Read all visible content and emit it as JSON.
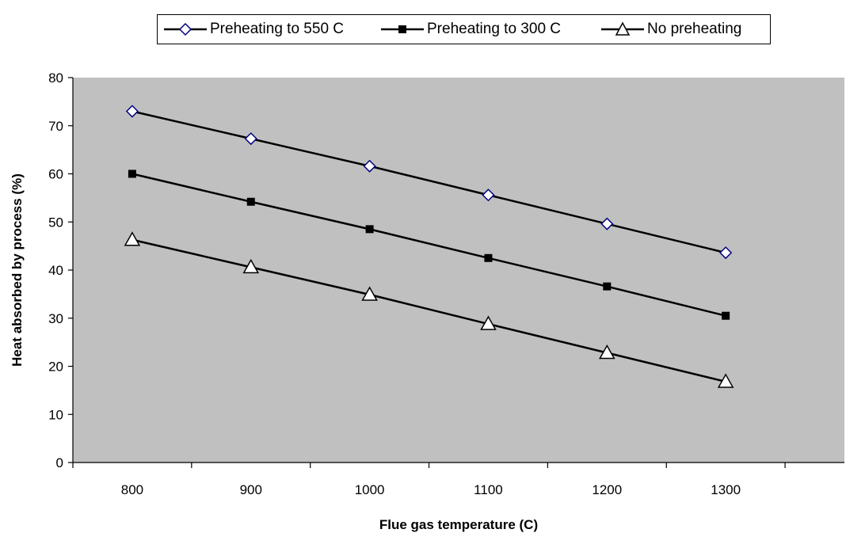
{
  "chart_data": {
    "type": "line",
    "title": "",
    "xlabel": "Flue gas temperature (C)",
    "ylabel": "Heat absorbed by process (%)",
    "x": [
      800,
      900,
      1000,
      1100,
      1200,
      1300
    ],
    "x_tick_labels": [
      "800",
      "900",
      "1000",
      "1100",
      "1200",
      "1300"
    ],
    "y_ticks": [
      0,
      10,
      20,
      30,
      40,
      50,
      60,
      70,
      80
    ],
    "y_tick_labels": [
      "0",
      "10",
      "20",
      "30",
      "40",
      "50",
      "60",
      "70",
      "80"
    ],
    "ylim": [
      0,
      80
    ],
    "grid": false,
    "legend_position": "top",
    "plot_background": "#c0c0c0",
    "series": [
      {
        "name": "Preheating to 550 C",
        "marker": "diamond-open",
        "color": "#000080",
        "values": [
          73.0,
          67.3,
          61.6,
          55.6,
          49.6,
          43.6
        ]
      },
      {
        "name": "Preheating to 300 C",
        "marker": "square-filled",
        "color": "#000000",
        "values": [
          60.0,
          54.2,
          48.5,
          42.5,
          36.6,
          30.5
        ]
      },
      {
        "name": "No preheating",
        "marker": "triangle-open",
        "color": "#000000",
        "values": [
          46.3,
          40.6,
          34.9,
          28.8,
          22.8,
          16.8
        ]
      }
    ]
  }
}
